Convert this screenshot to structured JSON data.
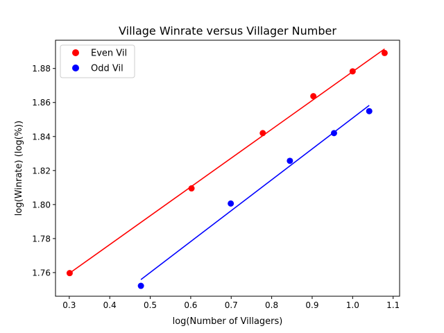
{
  "chart_data": {
    "type": "scatter",
    "title": "Village Winrate versus Villager Number",
    "xlabel": "log(Number of Villagers)",
    "ylabel": "log(Winrate) (log(%))",
    "xlim": [
      0.266,
      1.116
    ],
    "ylim": [
      1.7461,
      1.8966
    ],
    "xticks": [
      "0.3",
      "0.4",
      "0.5",
      "0.6",
      "0.7",
      "0.8",
      "0.9",
      "1.0",
      "1.1"
    ],
    "yticks": [
      "1.76",
      "1.78",
      "1.80",
      "1.82",
      "1.84",
      "1.86",
      "1.88"
    ],
    "grid": false,
    "legend_position": "top-left",
    "series": [
      {
        "name": "Even Vil",
        "color": "#ff0000",
        "points": [
          {
            "x": 0.301,
            "y": 1.7597
          },
          {
            "x": 0.602,
            "y": 1.8095
          },
          {
            "x": 0.778,
            "y": 1.842
          },
          {
            "x": 0.903,
            "y": 1.8637
          },
          {
            "x": 1.0,
            "y": 1.8783
          },
          {
            "x": 1.079,
            "y": 1.8891
          }
        ],
        "fit": {
          "x": [
            0.301,
            1.079
          ],
          "y": [
            1.7597,
            1.8915
          ]
        }
      },
      {
        "name": "Odd Vil",
        "color": "#0000ff",
        "points": [
          {
            "x": 0.477,
            "y": 1.7522
          },
          {
            "x": 0.699,
            "y": 1.8006
          },
          {
            "x": 0.845,
            "y": 1.8257
          },
          {
            "x": 0.954,
            "y": 1.842
          },
          {
            "x": 1.041,
            "y": 1.8549
          }
        ],
        "fit": {
          "x": [
            0.477,
            1.041
          ],
          "y": [
            1.7559,
            1.8583
          ]
        }
      }
    ]
  }
}
